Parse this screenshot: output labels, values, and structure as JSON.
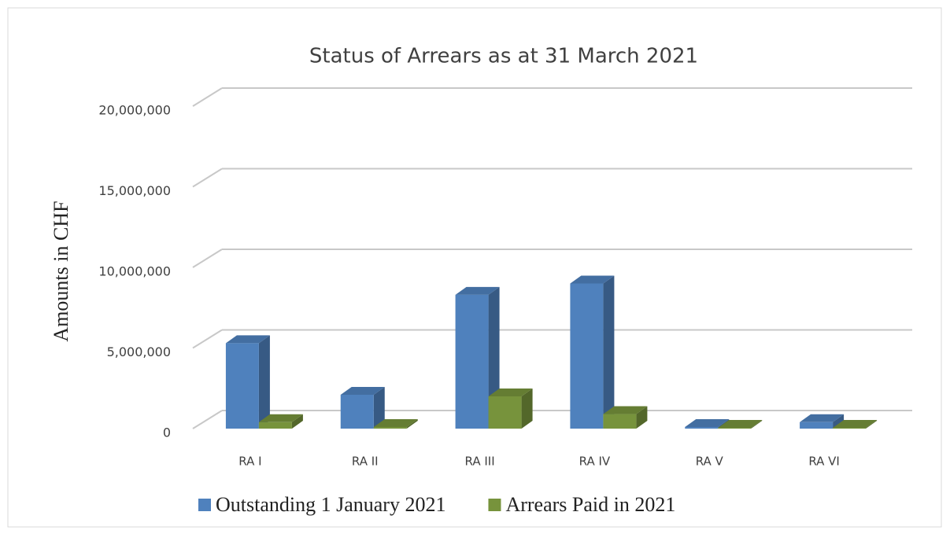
{
  "chart_data": {
    "type": "bar3d",
    "title": "Status of Arrears as at 31 March 2021",
    "y_label": "Amounts in CHF",
    "categories": [
      "RA I",
      "RA II",
      "RA III",
      "RA IV",
      "RA V",
      "RA VI"
    ],
    "series": [
      {
        "name": "Outstanding 1 January 2021",
        "color": "#4f81bd",
        "values": [
          5300000,
          2100000,
          8300000,
          9000000,
          100000,
          400000
        ]
      },
      {
        "name": "Arrears Paid in 2021",
        "color": "#77933c",
        "values": [
          400000,
          100000,
          2000000,
          900000,
          50000,
          50000
        ]
      }
    ],
    "ylim": [
      0,
      20000000
    ],
    "yticks": [
      0,
      {
        "value": 5000000,
        "label": "5,000,000"
      },
      {
        "value": 10000000,
        "label": "10,000,000"
      },
      {
        "value": 15000000,
        "label": "15,000,000"
      },
      {
        "value": 20000000,
        "label": "20,000,000"
      }
    ],
    "grid": true,
    "legend": "bottom"
  }
}
